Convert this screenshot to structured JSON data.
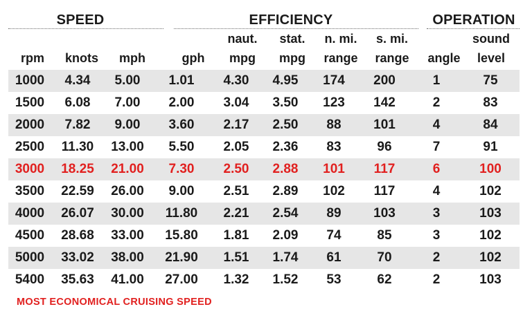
{
  "groups": {
    "speed": "SPEED",
    "efficiency": "EFFICIENCY",
    "operation": "OPERATION"
  },
  "columns": [
    {
      "top": "",
      "bottom": "rpm"
    },
    {
      "top": "",
      "bottom": "knots"
    },
    {
      "top": "",
      "bottom": "mph"
    },
    {
      "top": "",
      "bottom": "gph"
    },
    {
      "top": "naut.",
      "bottom": "mpg"
    },
    {
      "top": "stat.",
      "bottom": "mpg"
    },
    {
      "top": "n. mi.",
      "bottom": "range"
    },
    {
      "top": "s. mi.",
      "bottom": "range"
    },
    {
      "top": "",
      "bottom": "angle"
    },
    {
      "top": "sound",
      "bottom": "level"
    }
  ],
  "rows": [
    [
      "1000",
      "4.34",
      "5.00",
      "1.01",
      "4.30",
      "4.95",
      "174",
      "200",
      "1",
      "75"
    ],
    [
      "1500",
      "6.08",
      "7.00",
      "2.00",
      "3.04",
      "3.50",
      "123",
      "142",
      "2",
      "83"
    ],
    [
      "2000",
      "7.82",
      "9.00",
      "3.60",
      "2.17",
      "2.50",
      "88",
      "101",
      "4",
      "84"
    ],
    [
      "2500",
      "11.30",
      "13.00",
      "5.50",
      "2.05",
      "2.36",
      "83",
      "96",
      "7",
      "91"
    ],
    [
      "3000",
      "18.25",
      "21.00",
      "7.30",
      "2.50",
      "2.88",
      "101",
      "117",
      "6",
      "100"
    ],
    [
      "3500",
      "22.59",
      "26.00",
      "9.00",
      "2.51",
      "2.89",
      "102",
      "117",
      "4",
      "102"
    ],
    [
      "4000",
      "26.07",
      "30.00",
      "11.80",
      "2.21",
      "2.54",
      "89",
      "103",
      "3",
      "103"
    ],
    [
      "4500",
      "28.68",
      "33.00",
      "15.80",
      "1.81",
      "2.09",
      "74",
      "85",
      "3",
      "102"
    ],
    [
      "5000",
      "33.02",
      "38.00",
      "21.90",
      "1.51",
      "1.74",
      "61",
      "70",
      "2",
      "102"
    ],
    [
      "5400",
      "35.63",
      "41.00",
      "27.00",
      "1.32",
      "1.52",
      "53",
      "62",
      "2",
      "103"
    ]
  ],
  "highlight_row_index": 4,
  "highlight_color": "#e1201f",
  "stripe_color": "#e6e6e6",
  "footnote": "MOST ECONOMICAL CRUISING SPEED"
}
